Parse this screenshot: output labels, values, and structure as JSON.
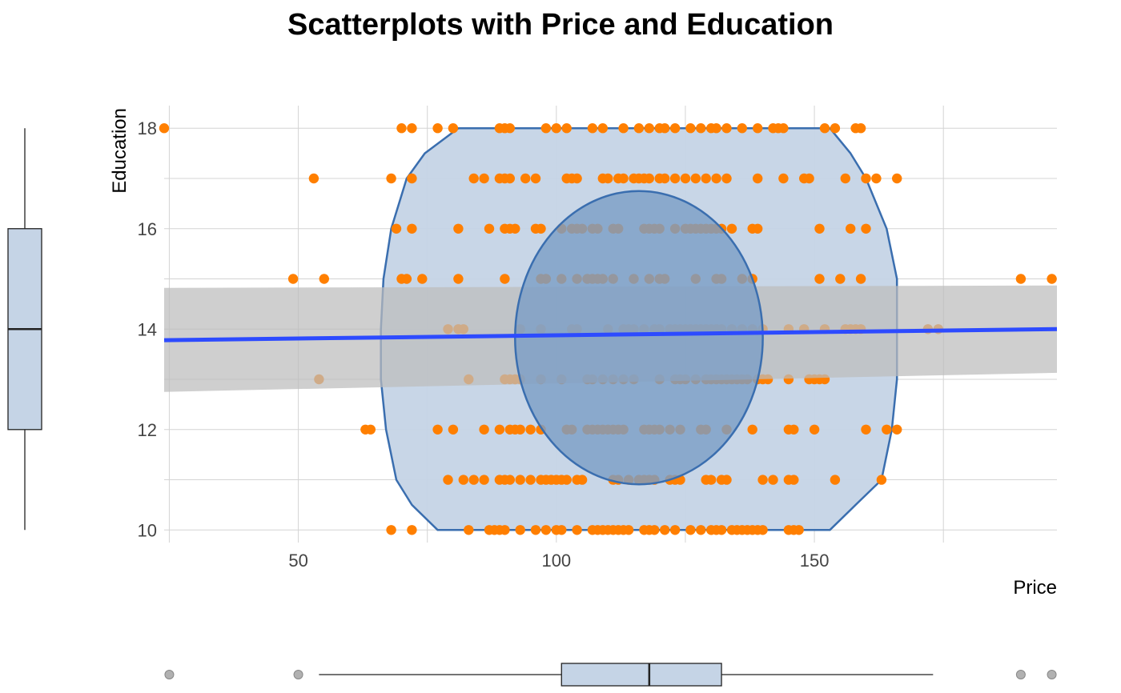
{
  "chart_data": {
    "type": "scatter",
    "title": "Scatterplots with Price and Education",
    "xlabel": "Price",
    "ylabel": "Education",
    "xlim": [
      24,
      197
    ],
    "ylim": [
      9.75,
      18.45
    ],
    "x_ticks": [
      50,
      100,
      150
    ],
    "y_ticks": [
      10,
      12,
      14,
      16,
      18
    ],
    "grid": true,
    "colors": {
      "points": "#ff7f00",
      "regression_line": "#2d4bff",
      "confidence_band": "#bdbdbd",
      "ellipse_outer": "#c5d4e6",
      "ellipse_inner": "#7a9ec5",
      "ellipse_stroke": "#3a6eaf",
      "boxplot_fill": "#c5d4e6",
      "outlier": "#9e9e9e"
    },
    "regression": {
      "x": [
        24,
        197
      ],
      "y": [
        13.78,
        14.0
      ],
      "ci_lower": [
        12.75,
        13.13
      ],
      "ci_upper": [
        14.82,
        14.87
      ]
    },
    "points": [
      {
        "y": 18,
        "x": [
          24,
          70,
          72,
          77,
          80,
          89,
          90,
          91,
          98,
          100,
          102,
          107,
          109,
          113,
          116,
          118,
          120,
          121,
          123,
          126,
          128,
          130,
          131,
          133,
          136,
          139,
          142,
          143,
          144,
          152,
          154,
          158,
          159
        ]
      },
      {
        "y": 17,
        "x": [
          53,
          68,
          72,
          84,
          86,
          89,
          90,
          91,
          94,
          96,
          102,
          103,
          104,
          109,
          110,
          112,
          113,
          115,
          116,
          117,
          118,
          120,
          121,
          123,
          125,
          127,
          129,
          131,
          133,
          139,
          144,
          148,
          149,
          156,
          160,
          162,
          166
        ]
      },
      {
        "y": 16,
        "x": [
          69,
          72,
          81,
          87,
          90,
          91,
          92,
          96,
          97,
          101,
          103,
          104,
          105,
          107,
          108,
          111,
          112,
          117,
          118,
          119,
          120,
          123,
          125,
          126,
          127,
          128,
          129,
          130,
          131,
          132,
          134,
          138,
          139,
          151,
          157,
          160
        ]
      },
      {
        "y": 15,
        "x": [
          49,
          55,
          70,
          71,
          74,
          81,
          90,
          97,
          98,
          101,
          104,
          106,
          107,
          108,
          109,
          111,
          115,
          118,
          120,
          121,
          127,
          131,
          132,
          136,
          138,
          151,
          155,
          159,
          190,
          196
        ]
      },
      {
        "y": 14,
        "x": [
          79,
          81,
          82,
          93,
          97,
          103,
          104,
          110,
          113,
          114,
          115,
          117,
          119,
          120,
          122,
          123,
          124,
          125,
          126,
          127,
          128,
          129,
          130,
          131,
          132,
          134,
          136,
          138,
          140,
          145,
          148,
          152,
          156,
          157,
          158,
          159,
          172,
          174
        ]
      },
      {
        "y": 13,
        "x": [
          54,
          83,
          90,
          91,
          92,
          93,
          97,
          101,
          106,
          107,
          109,
          111,
          113,
          115,
          120,
          123,
          124,
          125,
          127,
          129,
          130,
          131,
          132,
          133,
          134,
          135,
          136,
          137,
          139,
          140,
          141,
          145,
          149,
          150,
          151,
          152
        ]
      },
      {
        "y": 12,
        "x": [
          63,
          64,
          77,
          80,
          86,
          89,
          91,
          92,
          93,
          95,
          97,
          102,
          103,
          106,
          107,
          108,
          109,
          110,
          111,
          112,
          113,
          117,
          118,
          119,
          120,
          122,
          124,
          128,
          129,
          133,
          138,
          145,
          146,
          150,
          160,
          164,
          166
        ]
      },
      {
        "y": 11,
        "x": [
          79,
          82,
          84,
          86,
          89,
          90,
          91,
          93,
          95,
          97,
          98,
          99,
          100,
          101,
          102,
          104,
          105,
          111,
          112,
          114,
          116,
          117,
          118,
          119,
          122,
          123,
          124,
          129,
          130,
          132,
          133,
          140,
          142,
          145,
          146,
          154,
          163
        ]
      },
      {
        "y": 10,
        "x": [
          68,
          72,
          83,
          87,
          88,
          89,
          90,
          93,
          96,
          98,
          100,
          101,
          104,
          107,
          108,
          109,
          110,
          111,
          112,
          113,
          114,
          117,
          118,
          119,
          121,
          123,
          126,
          128,
          130,
          131,
          132,
          134,
          135,
          136,
          137,
          138,
          139,
          140,
          145,
          146,
          147
        ]
      }
    ],
    "outer_hull": [
      [
        81,
        18
      ],
      [
        153,
        18
      ],
      [
        157,
        17.5
      ],
      [
        160,
        17
      ],
      [
        164,
        16
      ],
      [
        166,
        15
      ],
      [
        166,
        14
      ],
      [
        166,
        13
      ],
      [
        165,
        12
      ],
      [
        163,
        11
      ],
      [
        158,
        10.5
      ],
      [
        153,
        10
      ],
      [
        77,
        10
      ],
      [
        72,
        10.5
      ],
      [
        69,
        11
      ],
      [
        67,
        12
      ],
      [
        66,
        13
      ],
      [
        66,
        14
      ],
      [
        66.5,
        15
      ],
      [
        68,
        16
      ],
      [
        71,
        17
      ],
      [
        74.5,
        17.5
      ]
    ],
    "inner_ellipse": {
      "cx": 116,
      "cy": 13.83,
      "rx": 24,
      "ry": 2.92
    },
    "x_boxplot": {
      "min": 54,
      "q1": 101,
      "median": 118,
      "q3": 132,
      "max": 173,
      "outliers": [
        25,
        50,
        190,
        196
      ]
    },
    "y_boxplot": {
      "min": 10,
      "q1": 12,
      "median": 14,
      "q3": 16,
      "max": 18,
      "outliers": []
    }
  }
}
